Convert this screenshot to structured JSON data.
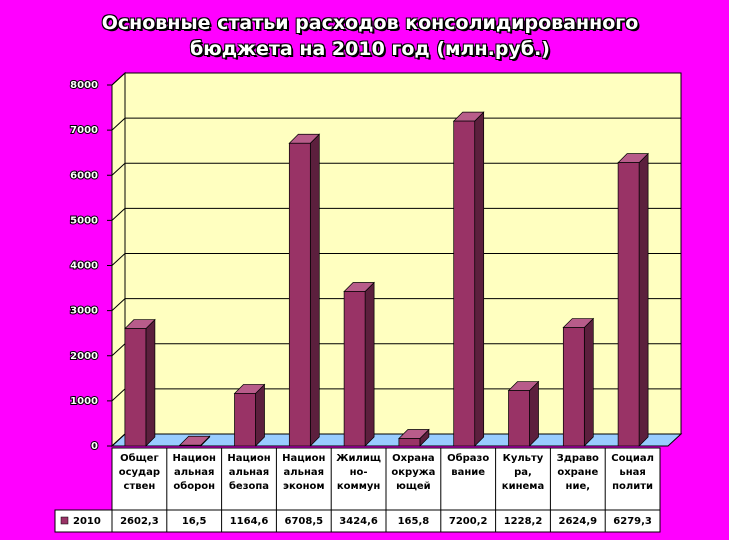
{
  "chart_data": {
    "type": "bar3d",
    "title": "Основные статьи расходов консолидированного бюджета на 2010 год (млн.руб.)",
    "categories": [
      "Общег осудар ствен",
      "Национ альная оборон",
      "Национ альная безопа",
      "Национ альная эконом",
      "Жилищ но- коммун",
      "Охрана окружа ющей",
      "Образо вание",
      "Культу ра, кинема",
      "Здраво охране ние,",
      "Социал ьная полити"
    ],
    "series": [
      {
        "name": "2010",
        "color": "#993366",
        "values": [
          2602.3,
          16.5,
          1164.6,
          6708.5,
          3424.6,
          165.8,
          7200.2,
          1228.2,
          2624.9,
          6279.3
        ],
        "value_labels": [
          "2602,3",
          "16,5",
          "1164,6",
          "6708,5",
          "3424,6",
          "165,8",
          "7200,2",
          "1228,2",
          "2624,9",
          "6279,3"
        ]
      }
    ],
    "ylim": [
      0,
      8000
    ],
    "yticks": [
      0,
      1000,
      2000,
      3000,
      4000,
      5000,
      6000,
      7000,
      8000
    ],
    "grid": true
  }
}
